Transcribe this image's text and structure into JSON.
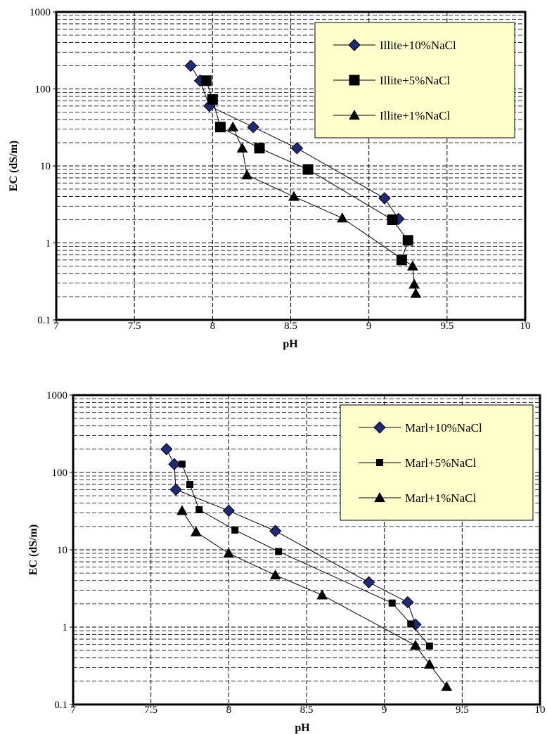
{
  "chart_data": [
    {
      "type": "scatter",
      "xlabel": "pH",
      "ylabel": "EC (dS/m)",
      "xlim": [
        7,
        10
      ],
      "ylim": [
        0.1,
        1000
      ],
      "yscale": "log",
      "x_ticks": [
        "7",
        "7.5",
        "8",
        "8.5",
        "9",
        "9.5",
        "10"
      ],
      "y_ticks": [
        "0.1",
        "1",
        "10",
        "100",
        "1000"
      ],
      "legend_position": "top-right",
      "grid": true,
      "series": [
        {
          "name": "Illite+10%NaCl",
          "marker": "diamond",
          "color": "#1f2a7a",
          "x": [
            7.86,
            7.92,
            7.98,
            8.26,
            8.54,
            9.1,
            9.19
          ],
          "y": [
            200,
            128,
            60,
            32,
            17,
            3.8,
            2.05
          ]
        },
        {
          "name": "Illite+5%NaCl",
          "marker": "square",
          "color": "#000000",
          "x": [
            7.96,
            8.0,
            8.05,
            8.3,
            8.61,
            9.15,
            9.25,
            9.21
          ],
          "y": [
            128,
            73,
            32,
            17,
            9.0,
            2.0,
            1.08,
            0.6
          ]
        },
        {
          "name": "Illite+1%NaCl",
          "marker": "triangle",
          "color": "#000000",
          "x": [
            8.13,
            8.19,
            8.22,
            8.52,
            8.83,
            9.28,
            9.29,
            9.3
          ],
          "y": [
            32,
            17,
            7.6,
            4.0,
            2.1,
            0.5,
            0.29,
            0.22
          ]
        }
      ]
    },
    {
      "type": "scatter",
      "xlabel": "pH",
      "ylabel": "EC (dS/m)",
      "xlim": [
        7,
        10
      ],
      "ylim": [
        0.1,
        1000
      ],
      "yscale": "log",
      "x_ticks": [
        "7",
        "7.5",
        "8",
        "8.5",
        "9",
        "9.5",
        "10"
      ],
      "y_ticks": [
        "0.1",
        "1",
        "10",
        "100",
        "1000"
      ],
      "legend_position": "top-right",
      "grid": true,
      "series": [
        {
          "name": "Marl+10%NaCl",
          "marker": "diamond",
          "color": "#1f2a7a",
          "x": [
            7.6,
            7.65,
            7.66,
            8.0,
            8.3,
            8.9,
            9.15,
            9.2
          ],
          "y": [
            200,
            128,
            60,
            32,
            17.5,
            3.8,
            2.1,
            1.08
          ]
        },
        {
          "name": "Marl+5%NaCl",
          "marker": "square",
          "color": "#000000",
          "x": [
            7.7,
            7.75,
            7.81,
            8.04,
            8.32,
            9.05,
            9.17,
            9.29
          ],
          "y": [
            128,
            70,
            33,
            18,
            9.5,
            2.05,
            1.1,
            0.57
          ]
        },
        {
          "name": "Marl+1%NaCl",
          "marker": "triangle",
          "color": "#000000",
          "x": [
            7.7,
            7.79,
            8.0,
            8.3,
            8.6,
            9.2,
            9.29,
            9.4
          ],
          "y": [
            32,
            17,
            9.0,
            4.7,
            2.6,
            0.58,
            0.33,
            0.17
          ]
        }
      ]
    }
  ]
}
